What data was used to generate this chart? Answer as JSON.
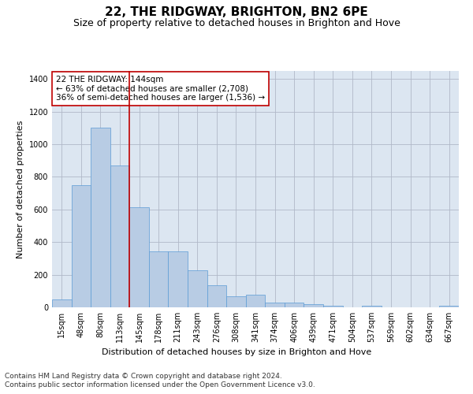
{
  "title": "22, THE RIDGWAY, BRIGHTON, BN2 6PE",
  "subtitle": "Size of property relative to detached houses in Brighton and Hove",
  "xlabel": "Distribution of detached houses by size in Brighton and Hove",
  "ylabel": "Number of detached properties",
  "footnote1": "Contains HM Land Registry data © Crown copyright and database right 2024.",
  "footnote2": "Contains public sector information licensed under the Open Government Licence v3.0.",
  "categories": [
    "15sqm",
    "48sqm",
    "80sqm",
    "113sqm",
    "145sqm",
    "178sqm",
    "211sqm",
    "243sqm",
    "276sqm",
    "308sqm",
    "341sqm",
    "374sqm",
    "406sqm",
    "439sqm",
    "471sqm",
    "504sqm",
    "537sqm",
    "569sqm",
    "602sqm",
    "634sqm",
    "667sqm"
  ],
  "values": [
    50,
    750,
    1100,
    870,
    615,
    345,
    345,
    225,
    135,
    70,
    75,
    28,
    28,
    18,
    12,
    0,
    12,
    0,
    0,
    0,
    12
  ],
  "bar_color": "#b8cce4",
  "bar_edge_color": "#5b9bd5",
  "grid_color": "#b0b8c8",
  "bg_color": "#dce6f1",
  "annotation_line1": "22 THE RIDGWAY: 144sqm",
  "annotation_line2": "← 63% of detached houses are smaller (2,708)",
  "annotation_line3": "36% of semi-detached houses are larger (1,536) →",
  "vline_x_index": 4,
  "vline_color": "#c00000",
  "ylim": [
    0,
    1450
  ],
  "yticks": [
    0,
    200,
    400,
    600,
    800,
    1000,
    1200,
    1400
  ],
  "title_fontsize": 11,
  "subtitle_fontsize": 9,
  "axis_label_fontsize": 8,
  "tick_fontsize": 7,
  "annotation_fontsize": 7.5,
  "footnote_fontsize": 6.5
}
